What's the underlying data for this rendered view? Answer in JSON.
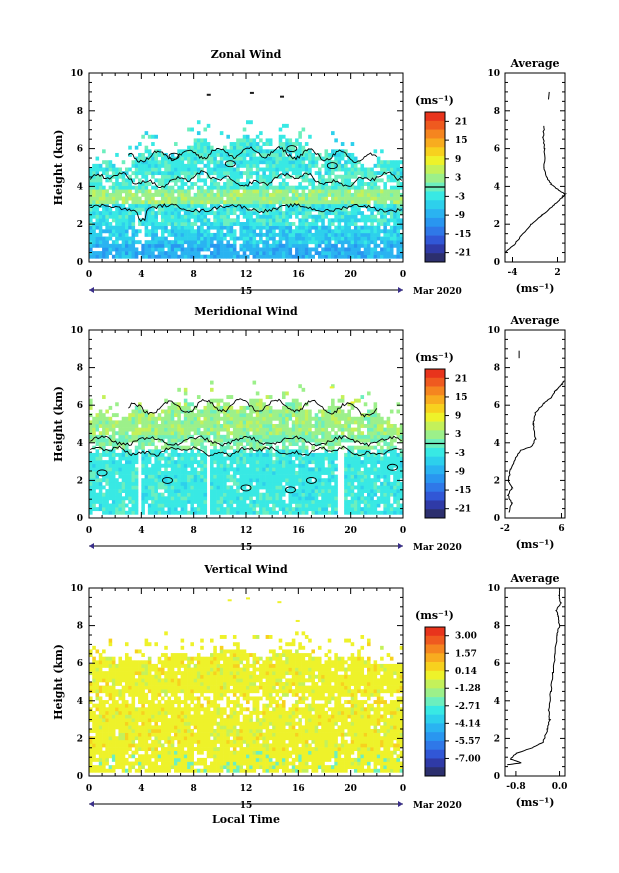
{
  "figure": {
    "xlabel": "Local Time",
    "date_label": "Mar 2020",
    "day_label": "15",
    "unit_label": "(ms⁻¹)"
  },
  "chart_data": [
    {
      "type": "heatmap",
      "title": "Zonal Wind",
      "ylabel": "Height (km)",
      "xlabel": "Local Time",
      "xlim": [
        0,
        24
      ],
      "ylim": [
        0,
        10
      ],
      "x_ticks": [
        "0",
        "4",
        "8",
        "12",
        "16",
        "20",
        "0"
      ],
      "y_ticks": [
        "0",
        "2",
        "4",
        "6",
        "8",
        "10"
      ],
      "colorbar_ticks": [
        "21",
        "15",
        "9",
        "3",
        "-3",
        "-9",
        "-15",
        "-21"
      ],
      "colorbar_range": [
        -24,
        24
      ],
      "contour_level": 0,
      "profile": {
        "title": "Average",
        "xlim": [
          -5,
          3
        ],
        "x_ticks": [
          "-4",
          "2"
        ],
        "points": [
          [
            -5.0,
            0.5
          ],
          [
            -3.8,
            0.9
          ],
          [
            -2.8,
            1.4
          ],
          [
            -1.5,
            2.0
          ],
          [
            0.0,
            2.5
          ],
          [
            1.5,
            3.0
          ],
          [
            2.6,
            3.4
          ],
          [
            3.0,
            3.6
          ],
          [
            2.2,
            3.8
          ],
          [
            1.2,
            4.1
          ],
          [
            0.5,
            4.5
          ],
          [
            0.2,
            5.0
          ],
          [
            0.3,
            6.0
          ],
          [
            0.1,
            6.6
          ],
          [
            0.2,
            7.2
          ]
        ],
        "sparse": [
          [
            0.8,
            8.6
          ],
          [
            0.9,
            9.0
          ]
        ]
      }
    },
    {
      "type": "heatmap",
      "title": "Meridional Wind",
      "ylabel": "Height (km)",
      "xlabel": "Local Time",
      "xlim": [
        0,
        24
      ],
      "ylim": [
        0,
        10
      ],
      "x_ticks": [
        "0",
        "4",
        "8",
        "12",
        "16",
        "20",
        "0"
      ],
      "y_ticks": [
        "0",
        "2",
        "4",
        "6",
        "8",
        "10"
      ],
      "colorbar_ticks": [
        "21",
        "15",
        "9",
        "3",
        "-3",
        "-9",
        "-15",
        "-21"
      ],
      "colorbar_range": [
        -24,
        24
      ],
      "contour_level": 0,
      "profile": {
        "title": "Average",
        "xlim": [
          -2,
          6.5
        ],
        "x_ticks": [
          "-2",
          "6"
        ],
        "points": [
          [
            -1.5,
            0.3
          ],
          [
            -1.0,
            0.8
          ],
          [
            -1.6,
            1.2
          ],
          [
            -1.0,
            1.6
          ],
          [
            -1.5,
            2.0
          ],
          [
            -1.2,
            2.6
          ],
          [
            -0.5,
            3.2
          ],
          [
            0.2,
            3.6
          ],
          [
            1.8,
            3.8
          ],
          [
            2.3,
            4.2
          ],
          [
            2.0,
            5.0
          ],
          [
            2.3,
            5.6
          ],
          [
            3.5,
            6.1
          ],
          [
            4.5,
            6.4
          ],
          [
            5.2,
            6.8
          ],
          [
            6.0,
            7.1
          ],
          [
            6.4,
            7.3
          ]
        ],
        "sparse": [
          [
            0.0,
            8.5
          ],
          [
            0.0,
            8.9
          ]
        ]
      }
    },
    {
      "type": "heatmap",
      "title": "Vertical Wind",
      "ylabel": "Height (km)",
      "xlabel": "Local Time",
      "xlim": [
        0,
        24
      ],
      "ylim": [
        0,
        10
      ],
      "x_ticks": [
        "0",
        "4",
        "8",
        "12",
        "16",
        "20",
        "0"
      ],
      "y_ticks": [
        "0",
        "2",
        "4",
        "6",
        "8",
        "10"
      ],
      "colorbar_ticks": [
        "3.00",
        "1.57",
        "0.14",
        "-1.28",
        "-2.71",
        "-4.14",
        "-5.57",
        "-7.00"
      ],
      "colorbar_range": [
        -8.43,
        3.71
      ],
      "profile": {
        "title": "Average",
        "xlim": [
          -1.0,
          0.1
        ],
        "x_ticks": [
          "-0.8",
          "0.0"
        ],
        "points": [
          [
            -0.95,
            0.6
          ],
          [
            -0.7,
            0.7
          ],
          [
            -0.9,
            0.9
          ],
          [
            -0.8,
            1.2
          ],
          [
            -0.5,
            1.5
          ],
          [
            -0.3,
            1.8
          ],
          [
            -0.22,
            2.5
          ],
          [
            -0.18,
            3.0
          ],
          [
            -0.2,
            3.5
          ],
          [
            -0.16,
            4.5
          ],
          [
            -0.12,
            5.5
          ],
          [
            -0.08,
            6.5
          ],
          [
            -0.05,
            7.5
          ],
          [
            0.0,
            8.0
          ],
          [
            -0.02,
            8.5
          ],
          [
            -0.06,
            8.8
          ],
          [
            0.02,
            9.2
          ],
          [
            -0.01,
            9.6
          ],
          [
            0.0,
            10.0
          ]
        ],
        "sparse": []
      }
    }
  ]
}
